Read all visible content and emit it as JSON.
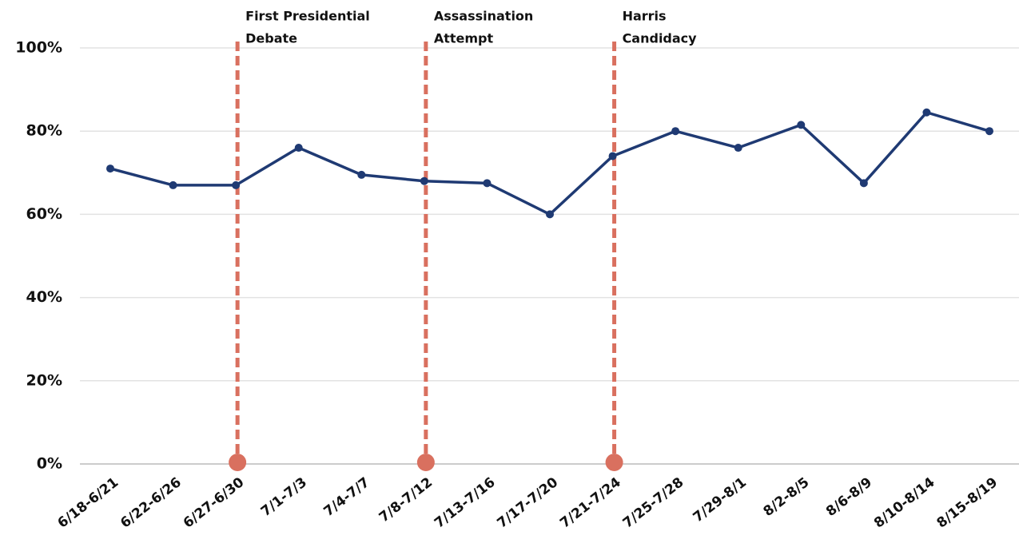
{
  "chart_data": {
    "type": "line",
    "categories": [
      "6/18-6/21",
      "6/22-6/26",
      "6/27-6/30",
      "7/1-7/3",
      "7/4-7/7",
      "7/8-7/12",
      "7/13-7/16",
      "7/17-7/20",
      "7/21-7/24",
      "7/25-7/28",
      "7/29-8/1",
      "8/2-8/5",
      "8/6-8/9",
      "8/10-8/14",
      "8/15-8/19"
    ],
    "series": [
      {
        "color": "#1f3a73",
        "values": [
          71,
          67,
          67,
          76,
          69.5,
          68,
          67.5,
          60,
          74,
          80,
          76,
          81.5,
          67.5,
          84.5,
          80
        ]
      }
    ],
    "ylim": [
      0,
      100
    ],
    "yticks": [
      {
        "value": 0,
        "label": "0%"
      },
      {
        "value": 20,
        "label": "20%"
      },
      {
        "value": 40,
        "label": "40%"
      },
      {
        "value": 60,
        "label": "60%"
      },
      {
        "value": 80,
        "label": "80%"
      },
      {
        "value": 100,
        "label": "100%"
      }
    ],
    "grid": true,
    "annotations": [
      {
        "x": "6/27-6/30",
        "text": [
          "First Presidential",
          "Debate"
        ],
        "color": "#d9705f"
      },
      {
        "x": "7/8-7/12",
        "text": [
          "Assassination",
          "Attempt"
        ],
        "color": "#d9705f"
      },
      {
        "x": "7/21-7/24",
        "text": [
          "Harris",
          "Candidacy"
        ],
        "color": "#d9705f"
      }
    ]
  }
}
